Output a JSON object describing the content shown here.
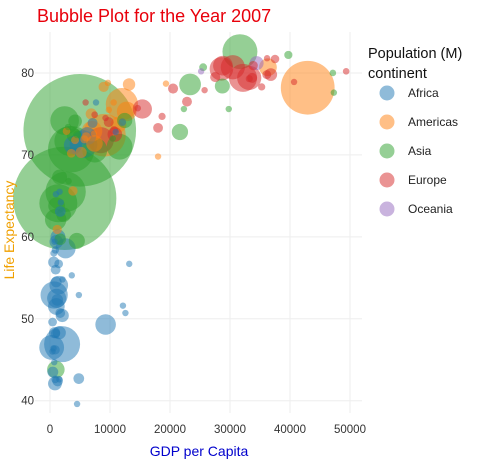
{
  "chart_data": {
    "type": "scatter",
    "title": "Bubble Plot for the Year 2007",
    "title_color": "#e8000b",
    "xlabel": "GDP per Capita",
    "xlabel_color": "#0000cc",
    "ylabel": "Life Expectancy",
    "ylabel_color": "#f0a000",
    "xlim": [
      -2500,
      52000
    ],
    "ylim": [
      38.5,
      85
    ],
    "xticks": [
      0,
      10000,
      20000,
      30000,
      40000,
      50000
    ],
    "xtick_labels": [
      "0",
      "10000",
      "20000",
      "30000",
      "40000",
      "50000"
    ],
    "yticks": [
      40,
      50,
      60,
      70,
      80
    ],
    "ytick_labels": [
      "40",
      "50",
      "60",
      "70",
      "80"
    ],
    "grid": true,
    "legend_title_line1": "Population (M)",
    "legend_title_line2": "continent",
    "legend_position": "right",
    "bubble_size_variable": "population_millions",
    "series": [
      {
        "name": "Africa",
        "color": "#1f77b4",
        "points": [
          {
            "x": 6223,
            "y": 72.3,
            "pop": 33
          },
          {
            "x": 4797,
            "y": 42.7,
            "pop": 12
          },
          {
            "x": 1441,
            "y": 56.7,
            "pop": 8
          },
          {
            "x": 12570,
            "y": 50.7,
            "pop": 2
          },
          {
            "x": 1217,
            "y": 52.3,
            "pop": 14
          },
          {
            "x": 430,
            "y": 49.6,
            "pop": 8
          },
          {
            "x": 2042,
            "y": 50.4,
            "pop": 18
          },
          {
            "x": 706,
            "y": 44.7,
            "pop": 4
          },
          {
            "x": 1704,
            "y": 50.7,
            "pop": 10
          },
          {
            "x": 986,
            "y": 65.2,
            "pop": 1
          },
          {
            "x": 277,
            "y": 46.5,
            "pop": 64
          },
          {
            "x": 3633,
            "y": 55.3,
            "pop": 4
          },
          {
            "x": 1545,
            "y": 48.3,
            "pop": 18
          },
          {
            "x": 2082,
            "y": 54.8,
            "pop": 0.5
          },
          {
            "x": 5581,
            "y": 71.3,
            "pop": 80
          },
          {
            "x": 12154,
            "y": 51.6,
            "pop": 0.6
          },
          {
            "x": 641,
            "y": 58.0,
            "pop": 5
          },
          {
            "x": 691,
            "y": 52.9,
            "pop": 77
          },
          {
            "x": 13206,
            "y": 56.7,
            "pop": 1.5
          },
          {
            "x": 753,
            "y": 59.4,
            "pop": 1.7
          },
          {
            "x": 1327,
            "y": 60.0,
            "pop": 23
          },
          {
            "x": 943,
            "y": 56.0,
            "pop": 10
          },
          {
            "x": 579,
            "y": 46.4,
            "pop": 1.5
          },
          {
            "x": 1463,
            "y": 54.1,
            "pop": 36
          },
          {
            "x": 1569,
            "y": 42.6,
            "pop": 2
          },
          {
            "x": 415,
            "y": 46.0,
            "pop": 3.2
          },
          {
            "x": 12057,
            "y": 74.0,
            "pop": 6
          },
          {
            "x": 1045,
            "y": 59.4,
            "pop": 19
          },
          {
            "x": 759,
            "y": 48.3,
            "pop": 13
          },
          {
            "x": 1042,
            "y": 54.5,
            "pop": 12
          },
          {
            "x": 1803,
            "y": 64.2,
            "pop": 3.3
          },
          {
            "x": 10957,
            "y": 72.8,
            "pop": 1.3
          },
          {
            "x": 3820,
            "y": 71.2,
            "pop": 33.8
          },
          {
            "x": 824,
            "y": 42.1,
            "pop": 20
          },
          {
            "x": 4811,
            "y": 52.9,
            "pop": 2
          },
          {
            "x": 620,
            "y": 56.9,
            "pop": 12.9
          },
          {
            "x": 2014,
            "y": 46.9,
            "pop": 135
          },
          {
            "x": 7670,
            "y": 76.4,
            "pop": 0.8
          },
          {
            "x": 863,
            "y": 46.2,
            "pop": 8.9
          },
          {
            "x": 1598,
            "y": 65.5,
            "pop": 0.2
          },
          {
            "x": 1712,
            "y": 63.1,
            "pop": 12
          },
          {
            "x": 862,
            "y": 42.6,
            "pop": 6
          },
          {
            "x": 926,
            "y": 48.2,
            "pop": 9
          },
          {
            "x": 9270,
            "y": 49.3,
            "pop": 44
          },
          {
            "x": 2602,
            "y": 58.6,
            "pop": 42
          },
          {
            "x": 4513,
            "y": 39.6,
            "pop": 1.1
          },
          {
            "x": 1107,
            "y": 52.5,
            "pop": 38
          },
          {
            "x": 883,
            "y": 58.4,
            "pop": 5.7
          },
          {
            "x": 7093,
            "y": 73.9,
            "pop": 10.3
          },
          {
            "x": 1056,
            "y": 51.5,
            "pop": 29
          },
          {
            "x": 1271,
            "y": 42.4,
            "pop": 11.7
          },
          {
            "x": 470,
            "y": 43.5,
            "pop": 12.3
          }
        ]
      },
      {
        "name": "Americas",
        "color": "#ff7f0e",
        "points": [
          {
            "x": 12779,
            "y": 75.3,
            "pop": 40
          },
          {
            "x": 3822,
            "y": 65.6,
            "pop": 9
          },
          {
            "x": 9066,
            "y": 72.4,
            "pop": 190
          },
          {
            "x": 36319,
            "y": 80.7,
            "pop": 33
          },
          {
            "x": 13172,
            "y": 78.6,
            "pop": 16
          },
          {
            "x": 7007,
            "y": 72.9,
            "pop": 44
          },
          {
            "x": 9645,
            "y": 78.8,
            "pop": 4
          },
          {
            "x": 8948,
            "y": 78.3,
            "pop": 11
          },
          {
            "x": 6025,
            "y": 72.2,
            "pop": 9
          },
          {
            "x": 6873,
            "y": 75.0,
            "pop": 13
          },
          {
            "x": 5728,
            "y": 71.9,
            "pop": 7
          },
          {
            "x": 5186,
            "y": 70.3,
            "pop": 13
          },
          {
            "x": 1202,
            "y": 60.9,
            "pop": 9
          },
          {
            "x": 3548,
            "y": 70.2,
            "pop": 8
          },
          {
            "x": 7321,
            "y": 72.6,
            "pop": 3
          },
          {
            "x": 11978,
            "y": 76.2,
            "pop": 108
          },
          {
            "x": 2749,
            "y": 72.9,
            "pop": 6
          },
          {
            "x": 9809,
            "y": 75.5,
            "pop": 3.2
          },
          {
            "x": 4173,
            "y": 71.8,
            "pop": 6.7
          },
          {
            "x": 7409,
            "y": 71.4,
            "pop": 28.7
          },
          {
            "x": 19329,
            "y": 78.7,
            "pop": 4
          },
          {
            "x": 18009,
            "y": 69.8,
            "pop": 1
          },
          {
            "x": 42952,
            "y": 78.2,
            "pop": 301
          },
          {
            "x": 10611,
            "y": 76.4,
            "pop": 3.4
          },
          {
            "x": 11416,
            "y": 73.7,
            "pop": 26
          }
        ]
      },
      {
        "name": "Asia",
        "color": "#2ca02c",
        "points": [
          {
            "x": 975,
            "y": 43.8,
            "pop": 32
          },
          {
            "x": 29796,
            "y": 75.6,
            "pop": 0.7
          },
          {
            "x": 1391,
            "y": 64.1,
            "pop": 150
          },
          {
            "x": 1714,
            "y": 59.7,
            "pop": 14
          },
          {
            "x": 4959,
            "y": 73.0,
            "pop": 1319
          },
          {
            "x": 39725,
            "y": 82.2,
            "pop": 7
          },
          {
            "x": 2452,
            "y": 64.7,
            "pop": 1110
          },
          {
            "x": 3541,
            "y": 70.7,
            "pop": 224
          },
          {
            "x": 11606,
            "y": 71.0,
            "pop": 69
          },
          {
            "x": 4471,
            "y": 59.5,
            "pop": 27
          },
          {
            "x": 25523,
            "y": 80.7,
            "pop": 6.4
          },
          {
            "x": 31656,
            "y": 82.6,
            "pop": 127
          },
          {
            "x": 4519,
            "y": 72.5,
            "pop": 6
          },
          {
            "x": 1593,
            "y": 67.3,
            "pop": 23
          },
          {
            "x": 23348,
            "y": 78.6,
            "pop": 49
          },
          {
            "x": 47307,
            "y": 77.6,
            "pop": 2.5
          },
          {
            "x": 10461,
            "y": 72.0,
            "pop": 4
          },
          {
            "x": 12452,
            "y": 74.2,
            "pop": 24
          },
          {
            "x": 3096,
            "y": 66.8,
            "pop": 2.9
          },
          {
            "x": 944,
            "y": 62.1,
            "pop": 47.8
          },
          {
            "x": 1091,
            "y": 63.8,
            "pop": 28.9
          },
          {
            "x": 22316,
            "y": 75.6,
            "pop": 3.2
          },
          {
            "x": 2606,
            "y": 65.5,
            "pop": 169
          },
          {
            "x": 3190,
            "y": 71.7,
            "pop": 91
          },
          {
            "x": 21655,
            "y": 72.8,
            "pop": 27.6
          },
          {
            "x": 47143,
            "y": 80.0,
            "pop": 4.5
          },
          {
            "x": 3970,
            "y": 72.4,
            "pop": 20.4
          },
          {
            "x": 4184,
            "y": 74.1,
            "pop": 19.3
          },
          {
            "x": 28718,
            "y": 78.4,
            "pop": 23.2
          },
          {
            "x": 7458,
            "y": 70.6,
            "pop": 65
          },
          {
            "x": 2441,
            "y": 74.2,
            "pop": 85
          },
          {
            "x": 3025,
            "y": 73.4,
            "pop": 4
          },
          {
            "x": 2281,
            "y": 62.7,
            "pop": 22
          }
        ]
      },
      {
        "name": "Europe",
        "color": "#d62728",
        "points": [
          {
            "x": 5937,
            "y": 76.4,
            "pop": 3.6
          },
          {
            "x": 36126,
            "y": 79.8,
            "pop": 8.2
          },
          {
            "x": 33692,
            "y": 79.4,
            "pop": 10.4
          },
          {
            "x": 7446,
            "y": 74.9,
            "pop": 4.6
          },
          {
            "x": 10681,
            "y": 73.0,
            "pop": 7.3
          },
          {
            "x": 14619,
            "y": 75.7,
            "pop": 4.5
          },
          {
            "x": 22833,
            "y": 76.5,
            "pop": 10.2
          },
          {
            "x": 35278,
            "y": 78.3,
            "pop": 5.5
          },
          {
            "x": 33207,
            "y": 79.3,
            "pop": 5.2
          },
          {
            "x": 30470,
            "y": 80.7,
            "pop": 61
          },
          {
            "x": 32170,
            "y": 79.4,
            "pop": 82
          },
          {
            "x": 27538,
            "y": 79.5,
            "pop": 10.7
          },
          {
            "x": 18009,
            "y": 73.3,
            "pop": 10
          },
          {
            "x": 36181,
            "y": 81.8,
            "pop": 0.3
          },
          {
            "x": 40676,
            "y": 78.9,
            "pop": 4.1
          },
          {
            "x": 28570,
            "y": 80.5,
            "pop": 58
          },
          {
            "x": 9254,
            "y": 74.5,
            "pop": 0.7
          },
          {
            "x": 36798,
            "y": 79.8,
            "pop": 16.6
          },
          {
            "x": 49357,
            "y": 80.2,
            "pop": 4.6
          },
          {
            "x": 15390,
            "y": 75.6,
            "pop": 38.5
          },
          {
            "x": 20510,
            "y": 78.1,
            "pop": 10.6
          },
          {
            "x": 10808,
            "y": 72.5,
            "pop": 22.3
          },
          {
            "x": 9786,
            "y": 74.0,
            "pop": 10.2
          },
          {
            "x": 18678,
            "y": 74.7,
            "pop": 5.4
          },
          {
            "x": 25768,
            "y": 77.9,
            "pop": 2
          },
          {
            "x": 28821,
            "y": 80.9,
            "pop": 40.4
          },
          {
            "x": 33860,
            "y": 80.9,
            "pop": 9
          },
          {
            "x": 37506,
            "y": 81.7,
            "pop": 7.6
          },
          {
            "x": 8458,
            "y": 71.8,
            "pop": 71
          },
          {
            "x": 33203,
            "y": 79.4,
            "pop": 60.8
          }
        ]
      },
      {
        "name": "Oceania",
        "color": "#9467bd",
        "points": [
          {
            "x": 34435,
            "y": 81.2,
            "pop": 20.4
          },
          {
            "x": 25185,
            "y": 80.2,
            "pop": 4.1
          }
        ]
      }
    ]
  }
}
